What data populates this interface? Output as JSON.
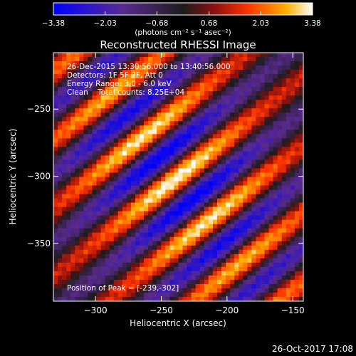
{
  "chart_data": {
    "type": "heatmap",
    "title": "Reconstructed RHESSI Image",
    "xlabel": "Heliocentric X (arcsec)",
    "ylabel": "Heliocentric Y (arcsec)",
    "xlim": [
      -332,
      -142
    ],
    "ylim": [
      -393,
      -208
    ],
    "xticks": [
      -300,
      -250,
      -200,
      -150
    ],
    "xtick_labels": [
      "−300",
      "−250",
      "−200",
      "−150"
    ],
    "yticks": [
      -250,
      -300,
      -350
    ],
    "ytick_labels": [
      "−250",
      "−300",
      "−350"
    ],
    "colorbar": {
      "range": [
        -3.38,
        3.38
      ],
      "ticks": [
        -3.38,
        -2.03,
        -0.68,
        0.68,
        2.03,
        3.38
      ],
      "tick_labels": [
        "−3.38",
        "−2.03",
        "−0.68",
        "0.68",
        "2.03",
        "3.38"
      ],
      "unit_label": "(photons cm⁻² s⁻¹ asec⁻²)",
      "colormap": [
        "#0000ff",
        "#5b2a8f",
        "#1c1c1c",
        "#8a1010",
        "#ff3300",
        "#ffb000",
        "#ffffff"
      ]
    },
    "peak": {
      "x": -239,
      "y": -302,
      "value": 3.38
    },
    "annotations": [
      "26-Dec-2015 13:30:56.000 to 13:40:56.000",
      "Detectors: 1F 5F 7F, Att 0",
      "Energy Range: 3.0 - 6.0 keV",
      "Clean    Total counts: 8.25E+04"
    ],
    "peak_label": "Position of Peak = [-239,-302]"
  },
  "footer": {
    "timestamp": "26-Oct-2017 17:08"
  }
}
